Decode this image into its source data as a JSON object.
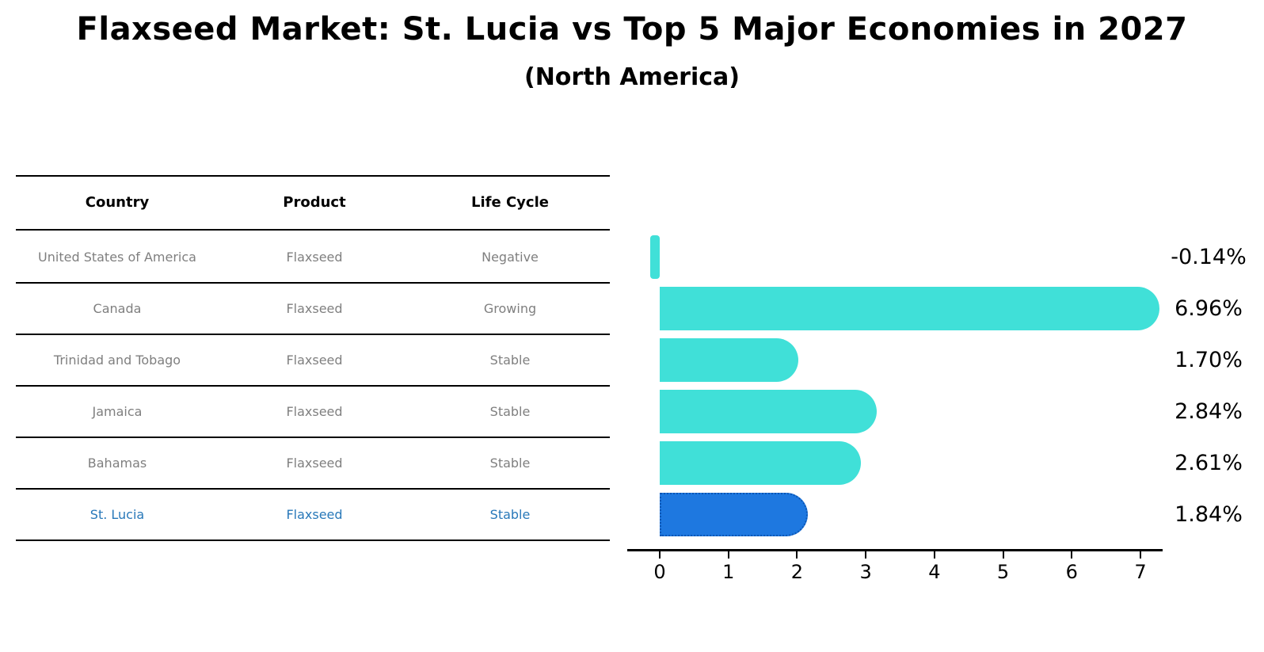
{
  "title": "Flaxseed Market: St. Lucia vs Top 5 Major Economies in 2027",
  "subtitle": "(North America)",
  "table": {
    "headers": {
      "country": "Country",
      "product": "Product",
      "life_cycle": "Life Cycle"
    },
    "rows": [
      {
        "country": "United States of America",
        "product": "Flaxseed",
        "life_cycle": "Negative",
        "highlight": false
      },
      {
        "country": "Canada",
        "product": "Flaxseed",
        "life_cycle": "Growing",
        "highlight": false
      },
      {
        "country": "Trinidad and Tobago",
        "product": "Flaxseed",
        "life_cycle": "Stable",
        "highlight": false
      },
      {
        "country": "Jamaica",
        "product": "Flaxseed",
        "life_cycle": "Stable",
        "highlight": false
      },
      {
        "country": "Bahamas",
        "product": "Flaxseed",
        "life_cycle": "Stable",
        "highlight": false
      },
      {
        "country": "St. Lucia",
        "product": "Flaxseed",
        "life_cycle": "Stable",
        "highlight": true
      }
    ]
  },
  "chart_data": {
    "type": "bar",
    "orientation": "horizontal",
    "title": "Flaxseed Market: St. Lucia vs Top 5 Major Economies in 2027 (North America)",
    "categories": [
      "United States of America",
      "Canada",
      "Trinidad and Tobago",
      "Jamaica",
      "Bahamas",
      "St. Lucia"
    ],
    "values": [
      -0.14,
      6.96,
      1.7,
      2.84,
      2.61,
      1.84
    ],
    "value_labels": [
      "-0.14%",
      "6.96%",
      "1.70%",
      "2.84%",
      "2.61%",
      "1.84%"
    ],
    "unit": "percent",
    "xticks": [
      0,
      1,
      2,
      3,
      4,
      5,
      6,
      7
    ],
    "xlim": [
      -0.5,
      7.3
    ],
    "grid": false,
    "legend": "none",
    "highlight_category": "St. Lucia",
    "colors": {
      "bar": "#40E0D8",
      "highlight_bar": "#1E78E0",
      "highlight_bar_border": "#0C56B4",
      "table_text": "#7f7f7f",
      "highlight_text": "#2878B9",
      "axis": "#000000",
      "title_text": "#000000"
    }
  }
}
